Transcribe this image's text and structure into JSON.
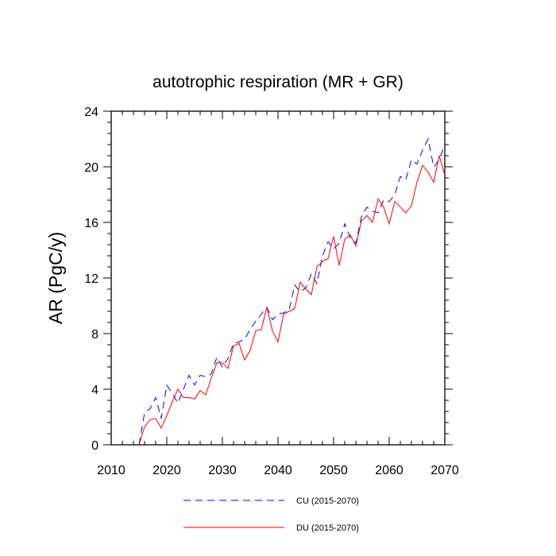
{
  "chart_data": {
    "type": "line",
    "title": "autotrophic respiration (MR + GR)",
    "xlabel": "",
    "ylabel": "AR  (PgC/y)",
    "xlim": [
      2010,
      2070
    ],
    "ylim": [
      0,
      24
    ],
    "x_ticks": [
      2010,
      2020,
      2030,
      2040,
      2050,
      2060,
      2070
    ],
    "y_ticks": [
      0,
      4,
      8,
      12,
      16,
      20,
      24
    ],
    "x_tick_labels": [
      "2010",
      "2020",
      "2030",
      "2040",
      "2050",
      "2060",
      "2070"
    ],
    "y_tick_labels": [
      "0",
      "4",
      "8",
      "12",
      "16",
      "20",
      "24"
    ],
    "grid": false,
    "legend_position": "bottom",
    "x": [
      2015,
      2016,
      2017,
      2018,
      2019,
      2020,
      2021,
      2022,
      2023,
      2024,
      2025,
      2026,
      2027,
      2028,
      2029,
      2030,
      2031,
      2032,
      2033,
      2034,
      2035,
      2036,
      2037,
      2038,
      2039,
      2040,
      2041,
      2042,
      2043,
      2044,
      2045,
      2046,
      2047,
      2048,
      2049,
      2050,
      2051,
      2052,
      2053,
      2054,
      2055,
      2056,
      2057,
      2058,
      2059,
      2060,
      2061,
      2062,
      2063,
      2064,
      2065,
      2066,
      2067,
      2068,
      2069,
      2070
    ],
    "series": [
      {
        "name": "CU (2015-2070)",
        "color": "#0000ff",
        "dash": "dashed",
        "values": [
          0.0,
          2.3,
          2.6,
          3.4,
          1.9,
          4.3,
          3.7,
          3.0,
          4.0,
          5.0,
          4.3,
          5.0,
          4.9,
          5.1,
          6.3,
          5.6,
          6.2,
          7.3,
          7.4,
          7.6,
          8.3,
          8.9,
          9.4,
          9.9,
          9.0,
          9.4,
          9.5,
          9.7,
          11.5,
          11.0,
          11.3,
          12.3,
          11.6,
          13.6,
          14.6,
          14.1,
          14.5,
          15.9,
          14.9,
          14.5,
          16.4,
          17.1,
          16.8,
          16.7,
          17.6,
          17.5,
          18.0,
          19.3,
          19.1,
          20.5,
          20.2,
          21.2,
          22.0,
          20.0,
          20.5,
          21.6
        ]
      },
      {
        "name": "DU (2015-2070)",
        "color": "#ff0000",
        "dash": "solid",
        "values": [
          0.0,
          1.3,
          1.8,
          1.9,
          1.2,
          2.1,
          3.1,
          4.0,
          3.4,
          3.4,
          3.3,
          3.9,
          3.6,
          4.8,
          5.9,
          5.9,
          5.5,
          7.1,
          7.3,
          6.1,
          6.8,
          8.2,
          8.3,
          9.9,
          8.2,
          7.4,
          9.4,
          9.6,
          9.8,
          11.7,
          11.2,
          10.8,
          12.8,
          13.2,
          13.4,
          15.0,
          12.9,
          14.8,
          15.1,
          14.3,
          16.1,
          16.5,
          16.0,
          17.7,
          17.1,
          15.9,
          17.5,
          17.1,
          16.7,
          17.2,
          18.9,
          20.1,
          19.6,
          18.9,
          20.8,
          19.4
        ]
      }
    ]
  }
}
